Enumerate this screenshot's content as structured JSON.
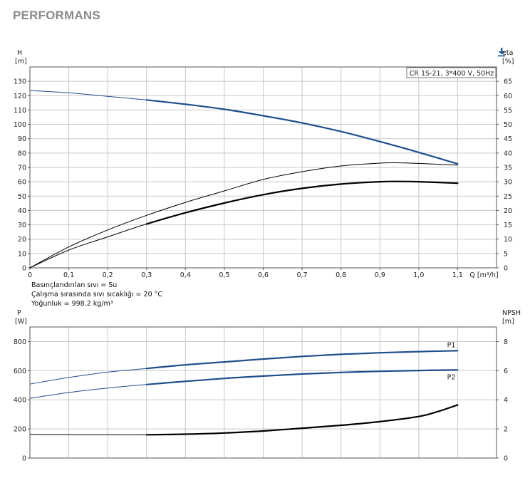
{
  "page": {
    "title": "PERFORMANS"
  },
  "icons": {
    "download": "download-icon"
  },
  "colors": {
    "blue": "#1f4e8c",
    "black": "#000000"
  },
  "notes": [
    "Basınçlandırılan sıvı = Su",
    "Çalışma sırasında sıvı sıcaklığı = 20 °C",
    "Yoğunluk = 998.2 kg/m³"
  ],
  "chart_data": [
    {
      "type": "line",
      "legend_text": "CR 1S-21, 3*400 V, 50Hz",
      "left_axis": {
        "label": "H",
        "unit": "[m]",
        "range": [
          0,
          140
        ],
        "ticks": [
          "0",
          "10",
          "20",
          "30",
          "40",
          "50",
          "60",
          "70",
          "80",
          "90",
          "100",
          "110",
          "120",
          "130"
        ]
      },
      "right_axis": {
        "label": "eta",
        "unit": "[%]",
        "range": [
          0,
          70
        ],
        "ticks": [
          "0",
          "5",
          "10",
          "15",
          "20",
          "25",
          "30",
          "35",
          "40",
          "45",
          "50",
          "55",
          "60",
          "65"
        ]
      },
      "x_axis": {
        "label": "Q [m³/h]",
        "range": [
          0,
          1.2
        ],
        "ticks": [
          "0",
          "0,1",
          "0,2",
          "0,3",
          "0,4",
          "0,5",
          "0,6",
          "0,7",
          "0,8",
          "0,9",
          "1,0",
          "1,1"
        ]
      },
      "operating_range": [
        0.3,
        1.1
      ],
      "series": [
        {
          "axis": "left",
          "color": "#1f4e8c",
          "x": [
            0,
            0.1,
            0.2,
            0.3,
            0.4,
            0.5,
            0.6,
            0.7,
            0.8,
            0.9,
            1.0,
            1.1
          ],
          "y": [
            123.5,
            122,
            119.5,
            117,
            114,
            110.5,
            106,
            101,
            95,
            88,
            80.5,
            72.5
          ]
        },
        {
          "axis": "right",
          "color": "#000000",
          "dual": true,
          "x": [
            0,
            0.1,
            0.2,
            0.3,
            0.4,
            0.5,
            0.6,
            0.7,
            0.8,
            0.9,
            0.95,
            1.0,
            1.1
          ],
          "y": [
            0,
            7.3,
            13.2,
            18.3,
            22.8,
            26.8,
            30.8,
            33.5,
            35.5,
            36.5,
            36.6,
            36.4,
            35.8
          ]
        },
        {
          "axis": "right",
          "color": "#000000",
          "x": [
            0,
            0.1,
            0.2,
            0.3,
            0.4,
            0.5,
            0.6,
            0.7,
            0.8,
            0.9,
            0.95,
            1.0,
            1.1
          ],
          "y": [
            0,
            6.2,
            10.8,
            15.3,
            19.2,
            22.6,
            25.5,
            27.7,
            29.2,
            30,
            30.1,
            30,
            29.5
          ]
        }
      ]
    },
    {
      "type": "line",
      "left_axis": {
        "label": "P",
        "unit": "[W]",
        "range": [
          0,
          900
        ],
        "ticks": [
          "0",
          "200",
          "400",
          "600",
          "800"
        ]
      },
      "right_axis": {
        "label": "NPSH",
        "unit": "[m]",
        "range": [
          0,
          9
        ],
        "ticks": [
          "0",
          "2",
          "4",
          "6",
          "8"
        ]
      },
      "x_axis": {
        "range": [
          0,
          1.2
        ]
      },
      "operating_range": [
        0.3,
        1.1
      ],
      "series": [
        {
          "name": "P1",
          "axis": "left",
          "color": "#1f4e8c",
          "x": [
            0,
            0.1,
            0.2,
            0.3,
            0.4,
            0.5,
            0.6,
            0.7,
            0.8,
            0.9,
            1.0,
            1.1
          ],
          "y": [
            508,
            553,
            590,
            615,
            640,
            660,
            680,
            698,
            712,
            723,
            731,
            737
          ]
        },
        {
          "name": "P2",
          "axis": "left",
          "color": "#1f4e8c",
          "x": [
            0,
            0.1,
            0.2,
            0.3,
            0.4,
            0.5,
            0.6,
            0.7,
            0.8,
            0.9,
            1.0,
            1.1
          ],
          "y": [
            410,
            450,
            481,
            505,
            527,
            547,
            563,
            577,
            588,
            596,
            601,
            605
          ]
        },
        {
          "axis": "right",
          "color": "#000000",
          "x": [
            0,
            0.1,
            0.2,
            0.3,
            0.4,
            0.5,
            0.6,
            0.7,
            0.8,
            0.9,
            1.0,
            1.05,
            1.1
          ],
          "y": [
            1.62,
            1.61,
            1.6,
            1.6,
            1.64,
            1.72,
            1.86,
            2.05,
            2.25,
            2.5,
            2.85,
            3.2,
            3.65
          ]
        }
      ]
    }
  ]
}
